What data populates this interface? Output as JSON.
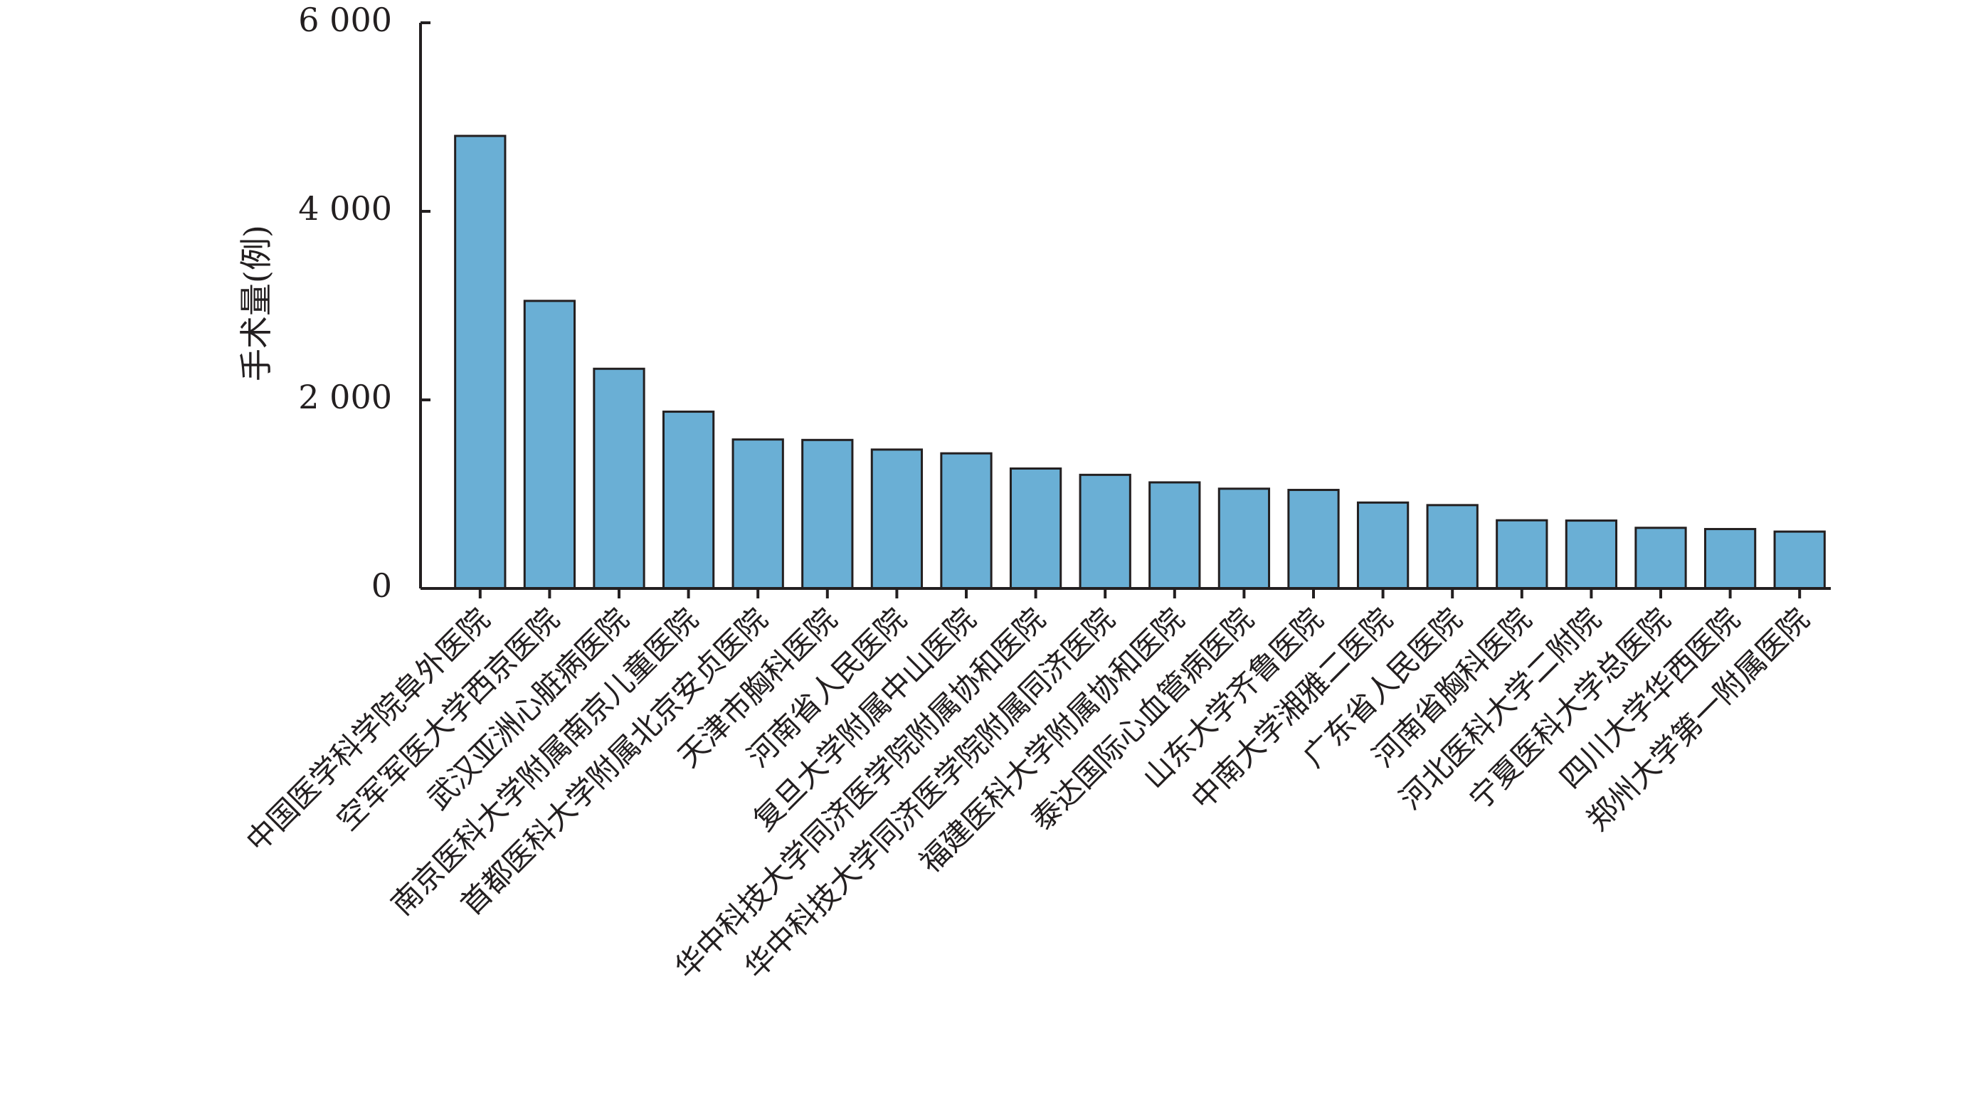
{
  "chart_data": {
    "type": "bar",
    "y_label": "手术量(例)",
    "categories": [
      "中国医学科学院阜外医院",
      "空军军医大学西京医院",
      "武汉亚洲心脏病医院",
      "南京医科大学附属南京儿童医院",
      "首都医科大学附属北京安贞医院",
      "天津市胸科医院",
      "河南省人民医院",
      "复旦大学附属中山医院",
      "华中科技大学同济医学院附属协和医院",
      "华中科技大学同济医学院附属同济医院",
      "福建医科大学附属协和医院",
      "泰达国际心血管病医院",
      "山东大学齐鲁医院",
      "中南大学湘雅二医院",
      "广东省人民医院",
      "河南省胸科医院",
      "河北医科大学二附院",
      "宁夏医科大学总医院",
      "四川大学华西医院",
      "郑州大学第一附属医院"
    ],
    "values": [
      4800,
      3050,
      2330,
      1875,
      1580,
      1575,
      1473,
      1433,
      1272,
      1205,
      1125,
      1058,
      1045,
      911,
      884,
      723,
      720,
      643,
      630,
      603
    ],
    "color": "#6aafd5",
    "ylim": [
      0,
      6000
    ],
    "yticks": [
      0,
      {
        "value": 2000,
        "label": "2 000"
      },
      {
        "value": 4000,
        "label": "4 000"
      },
      {
        "value": 6000,
        "label": "6 000"
      }
    ],
    "grid": false
  }
}
